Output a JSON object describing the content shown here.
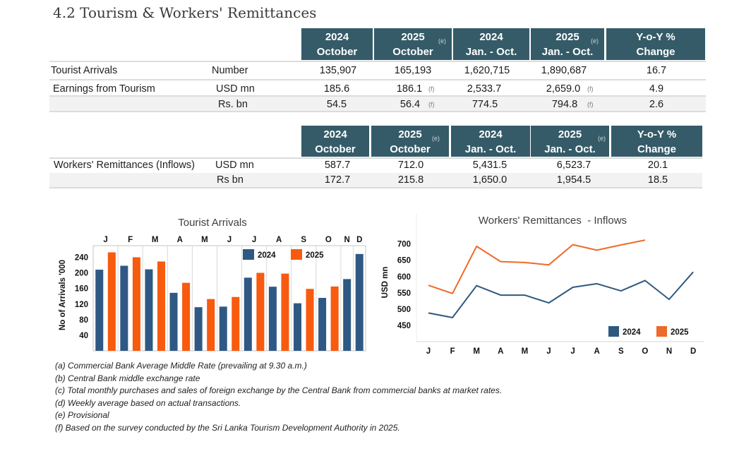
{
  "page": {
    "title": "4.2 Tourism & Workers' Remittances"
  },
  "tourism_table": {
    "headers": [
      {
        "line1": "2024",
        "line2": "October",
        "note": ""
      },
      {
        "line1": "2025",
        "line2": "October",
        "note": "(e)"
      },
      {
        "line1": "2024",
        "line2": "Jan. - Oct.",
        "note": ""
      },
      {
        "line1": "2025",
        "line2": "Jan. - Oct.",
        "note": "(e)"
      },
      {
        "line1": "Y-o-Y %",
        "line2": "Change",
        "note": ""
      }
    ],
    "rows": [
      {
        "label": "Tourist Arrivals",
        "unit": "Number",
        "values": [
          {
            "v": "135,907"
          },
          {
            "v": "165,193"
          },
          {
            "v": "1,620,715"
          },
          {
            "v": "1,890,687"
          },
          {
            "v": "16.7"
          }
        ]
      },
      {
        "label": "Earnings from Tourism",
        "unit": "USD mn",
        "values": [
          {
            "v": "185.6"
          },
          {
            "v": "186.1",
            "note": "(f)"
          },
          {
            "v": "2,533.7"
          },
          {
            "v": "2,659.0",
            "note": "(f)"
          },
          {
            "v": "4.9"
          }
        ]
      },
      {
        "label": "",
        "unit": "Rs. bn",
        "values": [
          {
            "v": "54.5"
          },
          {
            "v": "56.4",
            "note": "(f)"
          },
          {
            "v": "774.5"
          },
          {
            "v": "794.8",
            "note": "(f)"
          },
          {
            "v": "2.6"
          }
        ]
      }
    ]
  },
  "remittance_table": {
    "headers": [
      {
        "line1": "2024",
        "line2": "October",
        "note": ""
      },
      {
        "line1": "2025",
        "line2": "October",
        "note": "(e)"
      },
      {
        "line1": "2024",
        "line2": "Jan. - Oct.",
        "note": ""
      },
      {
        "line1": "2025",
        "line2": "Jan. - Oct.",
        "note": "(e)"
      },
      {
        "line1": "Y-o-Y %",
        "line2": "Change",
        "note": ""
      }
    ],
    "rows": [
      {
        "label": "Workers' Remittances (Inflows)",
        "unit": "USD mn",
        "values": [
          {
            "v": "587.7"
          },
          {
            "v": "712.0"
          },
          {
            "v": "5,431.5"
          },
          {
            "v": "6,523.7"
          },
          {
            "v": "20.1"
          }
        ]
      },
      {
        "label": "",
        "unit": "Rs bn",
        "values": [
          {
            "v": "172.7"
          },
          {
            "v": "215.8"
          },
          {
            "v": "1,650.0"
          },
          {
            "v": "1,954.5"
          },
          {
            "v": "18.5"
          }
        ]
      }
    ]
  },
  "chart_data": [
    {
      "type": "bar",
      "title": "Tourist Arrivals",
      "xlabel": "",
      "ylabel": "No of Arrivals '000",
      "categories": [
        "J",
        "F",
        "M",
        "A",
        "M",
        "J",
        "J",
        "A",
        "S",
        "O",
        "N",
        "D"
      ],
      "series": [
        {
          "name": "2024",
          "color": "#2f5984",
          "values": [
            208.3,
            218.4,
            209.2,
            148.9,
            112.1,
            113.5,
            187.8,
            164.6,
            122.1,
            135.9,
            184.2,
            248.6
          ]
        },
        {
          "name": "2025",
          "color": "#f85a0e",
          "values": [
            252.8,
            240.2,
            229.3,
            174.6,
            132.9,
            138.2,
            200.2,
            198.2,
            159.0,
            165.2,
            null,
            null
          ]
        }
      ],
      "yticks": [
        40,
        80,
        120,
        160,
        200,
        240
      ],
      "ylim": [
        0,
        270
      ],
      "grid": true,
      "x_axis_side": "top",
      "legend": "top-right"
    },
    {
      "type": "line",
      "title": "Workers' Remittances  - Inflows",
      "xlabel": "",
      "ylabel": "USD mn",
      "categories": [
        "J",
        "F",
        "M",
        "A",
        "M",
        "J",
        "J",
        "A",
        "S",
        "O",
        "N",
        "D"
      ],
      "series": [
        {
          "name": "2024",
          "color": "#2f587f",
          "values": [
            488,
            474,
            572,
            543,
            543,
            519,
            567,
            578,
            556,
            587.7,
            530,
            614
          ]
        },
        {
          "name": "2025",
          "color": "#ee6a2a",
          "values": [
            573,
            548,
            693,
            646,
            643,
            636,
            698,
            681,
            697,
            712.0,
            null,
            null
          ]
        }
      ],
      "yticks": [
        450,
        500,
        550,
        600,
        650,
        700
      ],
      "ylim": [
        400,
        750
      ],
      "grid": false,
      "legend": "bottom-right"
    }
  ],
  "footnotes": [
    "(a) Commercial Bank Average Middle Rate (prevailing at 9.30 a.m.)",
    "(b) Central Bank middle exchange rate",
    "(c) Total monthly purchases and sales of foreign exchange by the Central Bank from commercial banks at market rates.",
    "(d) Weekly average based on actual transactions.",
    "(e) Provisional",
    "(f) Based on the survey conducted by the Sri Lanka Tourism Development Authority in 2025."
  ]
}
